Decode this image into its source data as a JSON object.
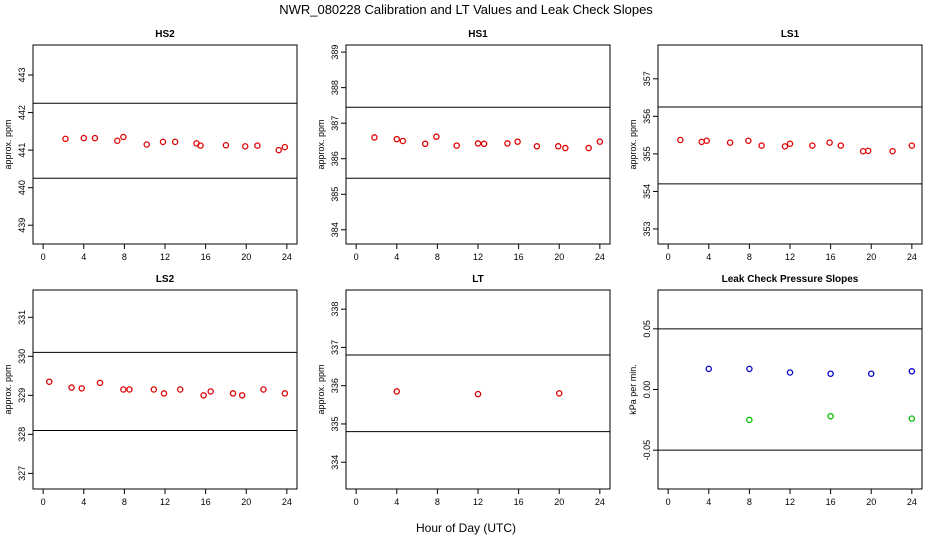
{
  "title": "NWR_080228  Calibration and LT Values and Leak Check Slopes",
  "xlabel": "Hour of Day (UTC)",
  "colors": {
    "red": "#e00000",
    "blue": "#0000cc",
    "green": "#00bb00",
    "axis": "#000000"
  },
  "chart_data": [
    {
      "type": "scatter",
      "title": "HS2",
      "ylabel": "approx. ppm",
      "xlim": [
        -1,
        25
      ],
      "ylim": [
        438.5,
        443.8
      ],
      "xticks": [
        0,
        4,
        8,
        12,
        16,
        20,
        24
      ],
      "yticks": [
        439,
        440,
        441,
        442,
        443
      ],
      "hlines": [
        442.25,
        440.25
      ],
      "color": "red",
      "x": [
        2.2,
        4.0,
        5.1,
        7.3,
        7.9,
        10.2,
        11.8,
        13.0,
        15.1,
        15.5,
        18.0,
        19.9,
        21.1,
        23.2,
        23.8
      ],
      "y": [
        441.3,
        441.32,
        441.32,
        441.25,
        441.35,
        441.15,
        441.22,
        441.22,
        441.18,
        441.12,
        441.13,
        441.1,
        441.12,
        441.0,
        441.08
      ]
    },
    {
      "type": "scatter",
      "title": "HS1",
      "ylabel": "approx. ppm",
      "xlim": [
        -1,
        25
      ],
      "ylim": [
        383.6,
        389.2
      ],
      "xticks": [
        0,
        4,
        8,
        12,
        16,
        20,
        24
      ],
      "yticks": [
        384,
        385,
        386,
        387,
        388,
        389
      ],
      "hlines": [
        387.45,
        385.45
      ],
      "color": "red",
      "x": [
        1.8,
        4.0,
        4.6,
        6.8,
        7.9,
        9.9,
        12.0,
        12.6,
        14.9,
        15.9,
        17.8,
        19.9,
        20.6,
        22.9,
        24.0
      ],
      "y": [
        386.6,
        386.55,
        386.5,
        386.42,
        386.62,
        386.37,
        386.43,
        386.42,
        386.43,
        386.48,
        386.35,
        386.35,
        386.3,
        386.3,
        386.48
      ]
    },
    {
      "type": "scatter",
      "title": "LS1",
      "ylabel": "approx. ppm",
      "xlim": [
        -1,
        25
      ],
      "ylim": [
        352.6,
        357.9
      ],
      "xticks": [
        0,
        4,
        8,
        12,
        16,
        20,
        24
      ],
      "yticks": [
        353,
        354,
        355,
        356,
        357
      ],
      "hlines": [
        356.25,
        354.2
      ],
      "color": "red",
      "x": [
        1.2,
        3.3,
        3.8,
        6.1,
        7.9,
        9.2,
        11.5,
        12.0,
        14.2,
        15.9,
        17.0,
        19.2,
        19.7,
        22.1,
        24.0
      ],
      "y": [
        355.37,
        355.32,
        355.35,
        355.3,
        355.35,
        355.22,
        355.2,
        355.27,
        355.22,
        355.3,
        355.22,
        355.07,
        355.08,
        355.07,
        355.22
      ]
    },
    {
      "type": "scatter",
      "title": "LS2",
      "ylabel": "approx. ppm",
      "xlim": [
        -1,
        25
      ],
      "ylim": [
        326.6,
        331.7
      ],
      "xticks": [
        0,
        4,
        8,
        12,
        16,
        20,
        24
      ],
      "yticks": [
        327,
        328,
        329,
        330,
        331
      ],
      "hlines": [
        330.1,
        328.1
      ],
      "color": "red",
      "x": [
        0.6,
        2.8,
        3.8,
        5.6,
        7.9,
        8.5,
        10.9,
        11.9,
        13.5,
        15.8,
        16.5,
        18.7,
        19.6,
        21.7,
        23.8
      ],
      "y": [
        329.35,
        329.2,
        329.18,
        329.32,
        329.15,
        329.15,
        329.15,
        329.05,
        329.15,
        329.0,
        329.1,
        329.05,
        329.0,
        329.15,
        329.05
      ]
    },
    {
      "type": "scatter",
      "title": "LT",
      "ylabel": "approx. ppm",
      "xlim": [
        -1,
        25
      ],
      "ylim": [
        333.3,
        338.5
      ],
      "xticks": [
        0,
        4,
        8,
        12,
        16,
        20,
        24
      ],
      "yticks": [
        334,
        335,
        336,
        337,
        338
      ],
      "hlines": [
        336.8,
        334.8
      ],
      "color": "red",
      "x": [
        4.0,
        12.0,
        20.0
      ],
      "y": [
        335.85,
        335.78,
        335.8
      ]
    },
    {
      "type": "scatter",
      "title": "Leak Check Pressure Slopes",
      "ylabel": "kPa per min.",
      "xlim": [
        -1,
        25
      ],
      "ylim": [
        -0.082,
        0.082
      ],
      "xticks": [
        0,
        4,
        8,
        12,
        16,
        20,
        24
      ],
      "yticks": [
        -0.05,
        0.0,
        0.05
      ],
      "ytick_labels": [
        "-0.05",
        "0.00",
        "0.05"
      ],
      "hlines": [
        0.05,
        -0.05
      ],
      "series": [
        {
          "color": "blue",
          "x": [
            4.0,
            8.0,
            12.0,
            16.0,
            20.0,
            24.0
          ],
          "y": [
            0.017,
            0.017,
            0.014,
            0.013,
            0.013,
            0.015
          ]
        },
        {
          "color": "green",
          "x": [
            8.0,
            16.0,
            24.0
          ],
          "y": [
            -0.025,
            -0.022,
            -0.024
          ]
        }
      ]
    }
  ]
}
